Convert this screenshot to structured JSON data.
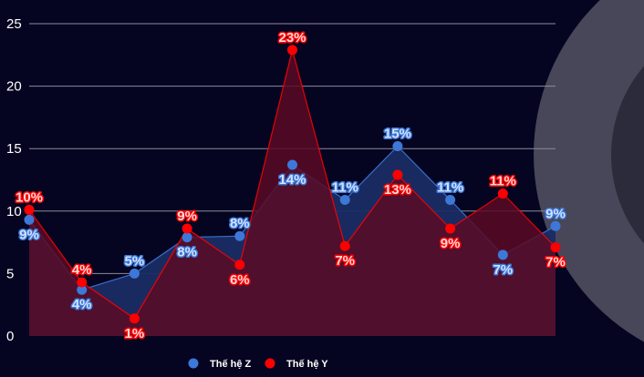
{
  "chart_data": {
    "type": "area",
    "y_ticks": [
      "0",
      "5",
      "10",
      "15",
      "20",
      "25"
    ],
    "ylim": [
      0,
      27
    ],
    "grid": true,
    "legend_position": "bottom",
    "x": [
      1,
      2,
      3,
      4,
      5,
      6,
      7,
      8,
      9,
      10,
      11
    ],
    "series": [
      {
        "name": "Thế hệ Z",
        "color": "#3d78d8",
        "fill": "#1a2c64",
        "label_color": "#d4e3ff",
        "values": [
          9.3,
          3.7,
          5.0,
          7.9,
          8.0,
          13.7,
          10.9,
          15.2,
          10.9,
          6.5,
          8.8
        ],
        "labels": [
          "9%",
          "4%",
          "5%",
          "8%",
          "8%",
          "14%",
          "11%",
          "15%",
          "11%",
          "7%",
          "9%"
        ]
      },
      {
        "name": "Thế hệ Y",
        "color": "#ff0000",
        "fill": "#5a0a25",
        "label_color": "#ffd9d9",
        "values": [
          10.1,
          4.3,
          1.4,
          8.6,
          5.7,
          22.9,
          7.2,
          12.9,
          8.6,
          11.4,
          7.1
        ],
        "labels": [
          "10%",
          "4%",
          "1%",
          "9%",
          "6%",
          "23%",
          "7%",
          "13%",
          "9%",
          "11%",
          "7%"
        ]
      }
    ]
  }
}
